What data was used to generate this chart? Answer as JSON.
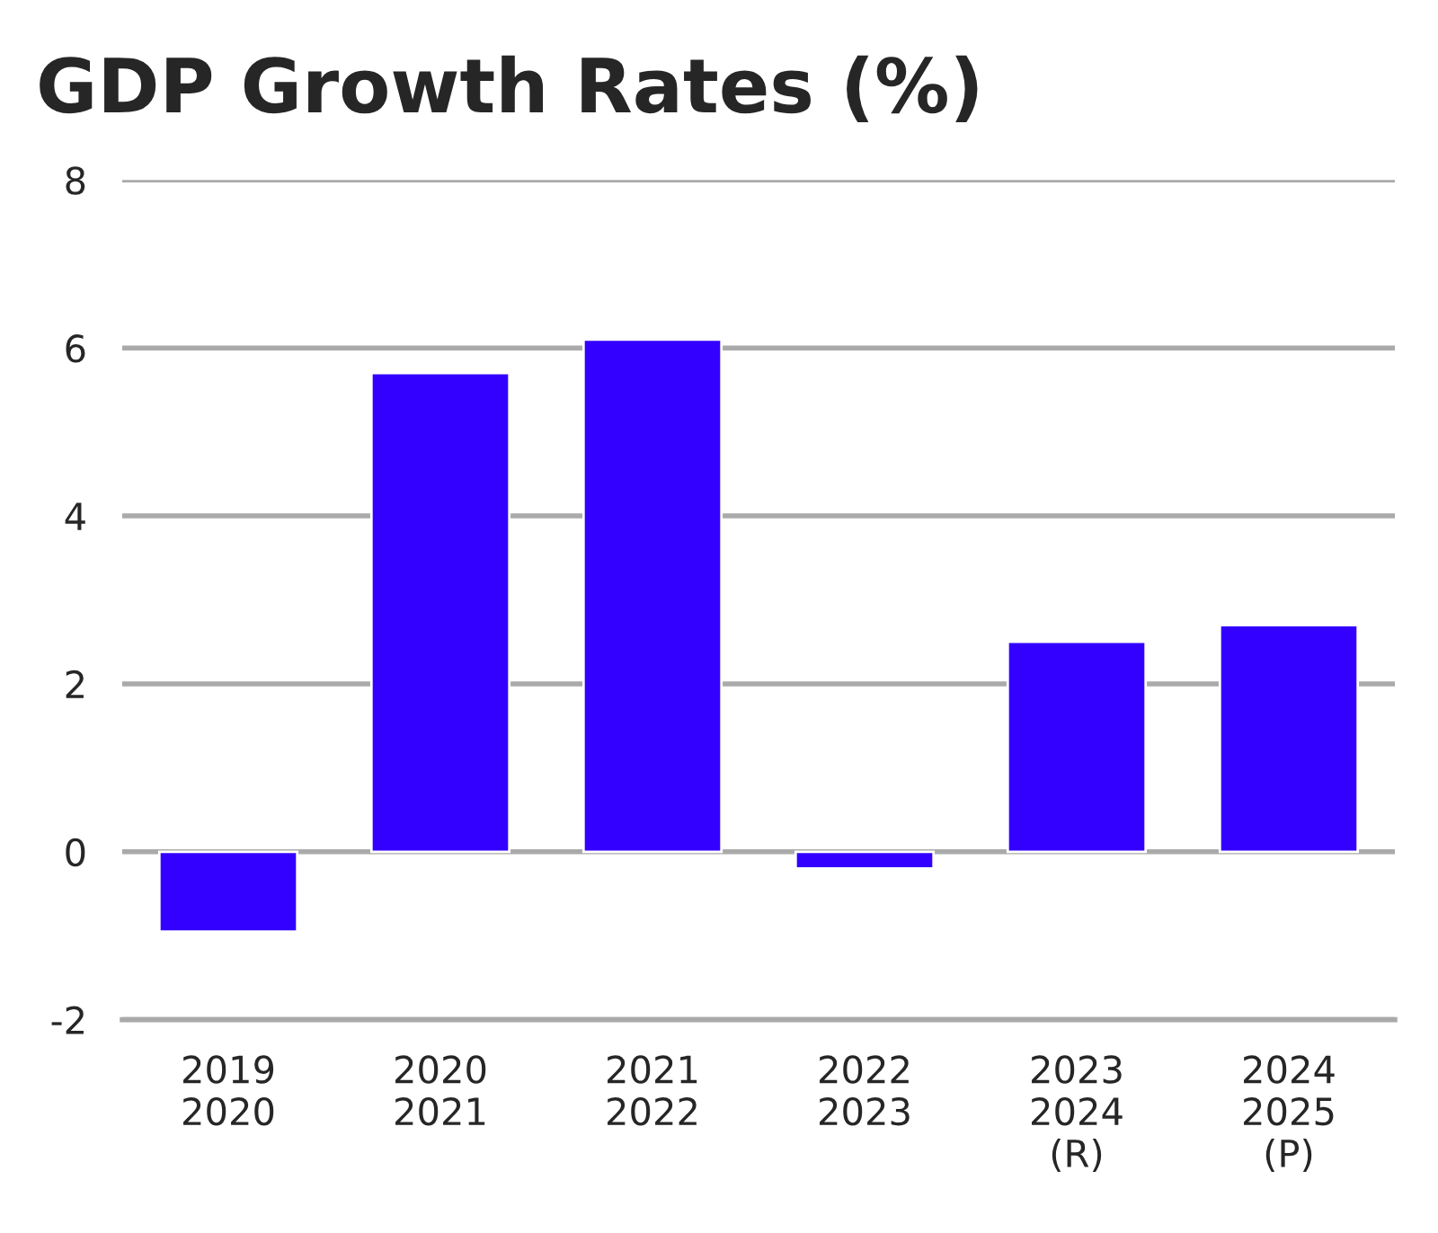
{
  "chart_data": {
    "type": "bar",
    "title": "GDP Growth Rates (%)",
    "categories": [
      "2019\n2020",
      "2020\n2021",
      "2021\n2022",
      "2022\n2023",
      "2023\n2024\n(R)",
      "2024\n2025\n(P)"
    ],
    "values": [
      -0.95,
      5.7,
      6.1,
      -0.2,
      2.5,
      2.7
    ],
    "color": "#3300ff",
    "ylim": [
      -2,
      8
    ],
    "yticks": [
      -2,
      0,
      2,
      4,
      6,
      8
    ],
    "grid": "y",
    "legend": false
  }
}
